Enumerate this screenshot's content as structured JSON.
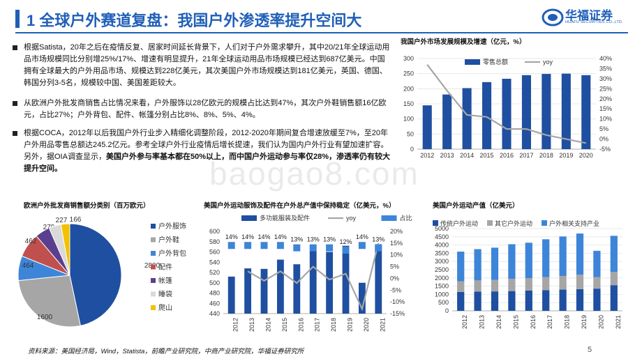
{
  "slide": {
    "title": "1 全球户外赛道复盘：我国户外渗透率提升空间大",
    "logo": {
      "name": "华福证券",
      "sub": "HUAFU SECURITIES CO.,LTD."
    },
    "watermark": "baogao8.com",
    "page_number": "5",
    "footer": "资料来源：美国经济局，Wind，Statista，前瞻产业研究院，中商产业研究院，华福证券研究所"
  },
  "bullets": [
    {
      "text": "根据Satista，20年之后在疫情反复、居家时间延长背景下，人们对于户外需求攀升，其中20/21年全球运动用品市场规模同比分别增25%/17%、增速有明显提升，21年全球运动用品市场规模已经达到687亿美元。中国拥有全球最大的户外用品市场、规模达到228亿美元，其次美国户外市场规模达到181亿美元，英国、德国、韩国分列3-5名，规模较中国、美国差距较大。"
    },
    {
      "text": "从欧洲户外批发商销售占比情况来看，户外服饰以28亿欧元的规模占比达到47%，其次户外鞋销售额16亿欧元，占比27%；户外背包、配件、帐篷分别占比8%、8%、5%、4%。"
    },
    {
      "text": "根据COCA，2012年以后我国户外行业步入精细化调整阶段，2012-2020年期间复合增速放缓至7%，至20年户外用品零售总额达245.2亿元。参考全球户外行业疫情后增长提速，我们认为国内户外行业有望加速扩容。另外，据OIA调查显示，",
      "bold": "美国户外参与率基本都在50%以上，而中国户外运动参与率仅28%，渗透率仍有较大提升空间。"
    }
  ],
  "chart_data": [
    {
      "type": "bar",
      "title": "我国户外市场发展规模及增速（亿元，%）",
      "categories": [
        "2012",
        "2013",
        "2014",
        "2015",
        "2016",
        "2017",
        "2018",
        "2019",
        "2020"
      ],
      "series": [
        {
          "name": "零售总额",
          "type": "bar",
          "axis": "left",
          "color": "#1f4fa0",
          "values": [
            145,
            181,
            202,
            222,
            233,
            245,
            249,
            250,
            245
          ]
        },
        {
          "name": "yoy",
          "type": "line",
          "axis": "right",
          "color": "#a6a6a6",
          "values": [
            37,
            24,
            12,
            11,
            5,
            5,
            2,
            0,
            -2
          ]
        }
      ],
      "ylim": [
        0,
        300
      ],
      "yticks": [
        "0",
        "50",
        "100",
        "150",
        "200",
        "250",
        "300"
      ],
      "y2lim": [
        -5,
        40
      ],
      "y2ticks": [
        "-5%",
        "0%",
        "5%",
        "10%",
        "15%",
        "20%",
        "25%",
        "30%",
        "35%",
        "40%"
      ],
      "legend": "top"
    },
    {
      "type": "pie",
      "title": "欧洲户外批发商销售额分类别（百万欧元）",
      "slices": [
        {
          "label": "户外服饰",
          "value": 2800,
          "color": "#1f4fa0"
        },
        {
          "label": "户外鞋",
          "value": 1600,
          "color": "#a6a6a6"
        },
        {
          "label": "户外背包",
          "value": 464,
          "color": "#3d85d8"
        },
        {
          "label": "配件",
          "value": 462,
          "color": "#c0504d"
        },
        {
          "label": "帐篷",
          "value": 279,
          "color": "#5b3f8f"
        },
        {
          "label": "睡袋",
          "value": 227,
          "color": "#d9d9d9"
        },
        {
          "label": "爬山",
          "value": 166,
          "color": "#f2c200"
        }
      ],
      "legend": "right"
    },
    {
      "type": "bar",
      "title": "美国户外运动服饰及配件在户外总产值中保持稳定（亿美元，%）",
      "categories": [
        "2012",
        "2013",
        "2014",
        "2015",
        "2016",
        "2017",
        "2018",
        "2019",
        "2020",
        "2021"
      ],
      "series": [
        {
          "name": "多功能服装及配件",
          "type": "bar",
          "axis": "left",
          "color": "#1f4fa0",
          "values": [
            512,
            528,
            527,
            545,
            536,
            562,
            560,
            572,
            500,
            575
          ]
        },
        {
          "name": "yoy",
          "type": "line",
          "axis": "right",
          "color": "#a6a6a6",
          "values": [
            null,
            3,
            -1,
            3,
            -2,
            5,
            -0.5,
            2,
            -13,
            15
          ]
        },
        {
          "name": "占比",
          "type": "marker",
          "axis": "right",
          "color": "#3d85d8",
          "values": [
            14,
            14,
            14,
            14,
            13,
            13,
            13,
            12,
            14,
            13
          ],
          "labels": [
            "14%",
            "14%",
            "14%",
            "14%",
            "13%",
            "13%",
            "13%",
            "12%",
            "14%",
            "13%"
          ]
        }
      ],
      "ylim": [
        440,
        600
      ],
      "yticks": [
        "440",
        "460",
        "480",
        "500",
        "520",
        "540",
        "560",
        "580",
        "600"
      ],
      "y2lim": [
        -15,
        20
      ],
      "y2ticks": [
        "-15%",
        "-10%",
        "-5%",
        "0%",
        "5%",
        "10%",
        "15%",
        "20%"
      ],
      "legend": "top"
    },
    {
      "type": "bar",
      "stacked": true,
      "title": "美国户外运动产值（亿美元）",
      "categories": [
        "2012",
        "2013",
        "2014",
        "2015",
        "2016",
        "2017",
        "2018",
        "2019",
        "2020",
        "2021"
      ],
      "series": [
        {
          "name": "传统户外运动",
          "color": "#1f4fa0",
          "values": [
            1150,
            1170,
            1180,
            1200,
            1230,
            1260,
            1290,
            1320,
            1350,
            1560
          ]
        },
        {
          "name": "其它户外运动",
          "color": "#a6a6a6",
          "values": [
            650,
            680,
            700,
            750,
            760,
            790,
            830,
            880,
            700,
            800
          ]
        },
        {
          "name": "户外相关支持产业",
          "color": "#3d85d8",
          "values": [
            1800,
            1900,
            1960,
            2100,
            2150,
            2300,
            2400,
            2500,
            1600,
            2200
          ]
        }
      ],
      "ylim": [
        0,
        5000
      ],
      "yticks": [
        "0",
        "500",
        "1000",
        "1500",
        "2000",
        "2500",
        "3000",
        "3500",
        "4000",
        "4500",
        "5000"
      ],
      "legend": "top"
    }
  ]
}
